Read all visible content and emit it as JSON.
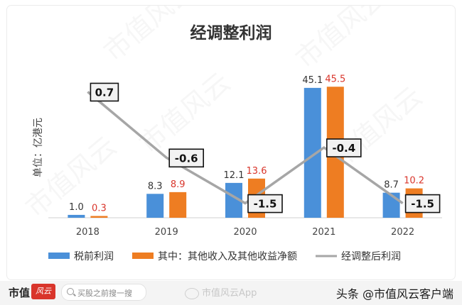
{
  "chart_data": {
    "type": "bar",
    "title": "经调整利润",
    "ylabel": "单位：亿港元",
    "categories": [
      "2018",
      "2019",
      "2020",
      "2021",
      "2022"
    ],
    "series": [
      {
        "name": "税前利润",
        "type": "bar",
        "color": "#4a90d9",
        "values": [
          1.0,
          8.3,
          12.1,
          45.1,
          8.7
        ]
      },
      {
        "name": "其中：其他收入及其他收益净额",
        "type": "bar",
        "color": "#ee7d22",
        "values": [
          0.3,
          8.9,
          13.6,
          45.5,
          10.2
        ]
      },
      {
        "name": "经调整后利润",
        "type": "line",
        "color": "#a6a6a6",
        "values": [
          0.7,
          -0.6,
          -1.5,
          -0.4,
          -1.5
        ]
      }
    ],
    "bar_label_colors": [
      "#333333",
      "#d9352b"
    ],
    "ylim": [
      0,
      50
    ],
    "line_ylim": [
      -1.8,
      1.0
    ],
    "grid": false,
    "legend_position": "bottom"
  },
  "watermark": {
    "text": "市值风云"
  },
  "footer": {
    "brand_name": "市值",
    "brand_mark": "风云",
    "search_placeholder": "买股之前搜一搜",
    "center_watermark": "市值风云App",
    "credit": "头条 @市值风云客户端"
  }
}
